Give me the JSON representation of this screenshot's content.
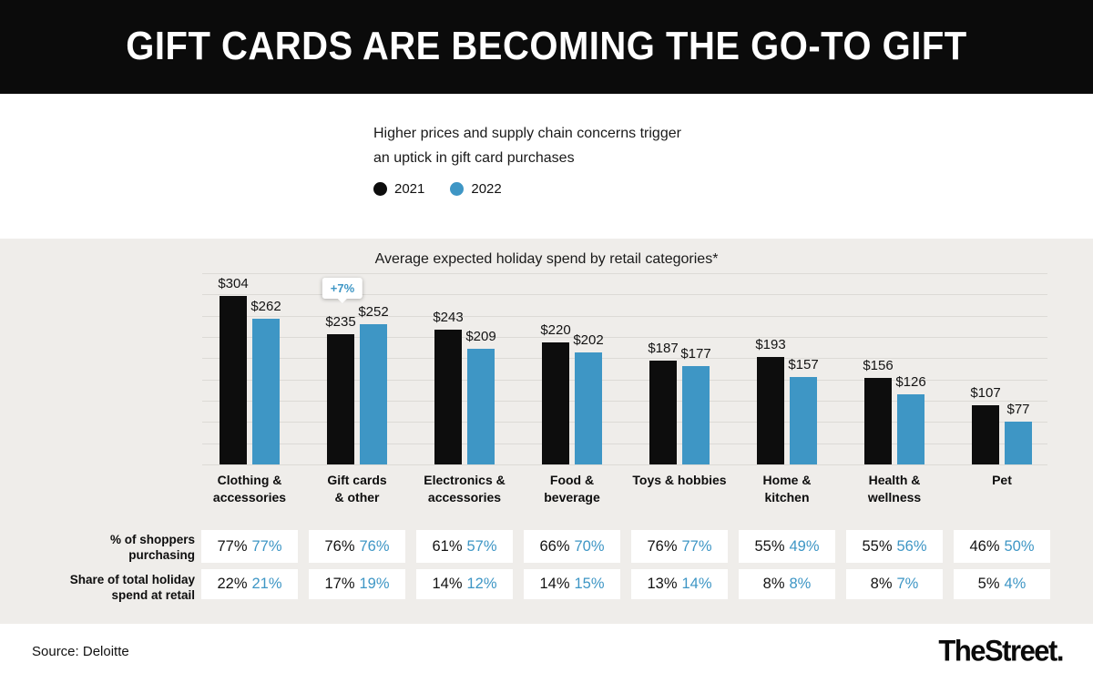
{
  "header": {
    "title": "GIFT CARDS ARE BECOMING THE GO-TO GIFT"
  },
  "intro": {
    "line1": "Higher prices and supply chain concerns trigger",
    "line2": "an uptick in gift card purchases"
  },
  "legend": [
    {
      "label": "2021",
      "color_key": "black"
    },
    {
      "label": "2022",
      "color_key": "blue"
    }
  ],
  "colors": {
    "black": "#0d0d0d",
    "blue": "#3e96c5",
    "panel_bg": "#efedea"
  },
  "chart_data": {
    "type": "bar",
    "title": "Average expected holiday spend by retail categories*",
    "value_prefix": "$",
    "categories": [
      "Clothing & accessories",
      "Gift cards & other",
      "Electronics & accessories",
      "Food & beverage",
      "Toys & hobbies",
      "Home & kitchen",
      "Health & wellness",
      "Pet"
    ],
    "category_lines": [
      [
        "Clothing &",
        "accessories"
      ],
      [
        "Gift cards",
        "& other"
      ],
      [
        "Electronics &",
        "accessories"
      ],
      [
        "Food &",
        "beverage"
      ],
      [
        "Toys & hobbies"
      ],
      [
        "Home &",
        "kitchen"
      ],
      [
        "Health &",
        "wellness"
      ],
      [
        "Pet"
      ]
    ],
    "series": [
      {
        "name": "2021",
        "color_key": "black",
        "values": [
          304,
          235,
          243,
          220,
          187,
          193,
          156,
          107
        ]
      },
      {
        "name": "2022",
        "color_key": "blue",
        "values": [
          262,
          252,
          209,
          202,
          177,
          157,
          126,
          77
        ]
      }
    ],
    "callout": {
      "text": "+7%",
      "category_index": 1,
      "series": "2022"
    },
    "ylim": [
      0,
      345
    ],
    "grid": "horizontal",
    "legend_position": "top-left"
  },
  "table": {
    "rows": [
      {
        "label_lines": [
          "% of shoppers",
          "purchasing"
        ],
        "pairs": [
          [
            "77%",
            "77%"
          ],
          [
            "76%",
            "76%"
          ],
          [
            "61%",
            "57%"
          ],
          [
            "66%",
            "70%"
          ],
          [
            "76%",
            "77%"
          ],
          [
            "55%",
            "49%"
          ],
          [
            "55%",
            "56%"
          ],
          [
            "46%",
            "50%"
          ]
        ]
      },
      {
        "label_lines": [
          "Share of total holiday",
          "spend at retail"
        ],
        "pairs": [
          [
            "22%",
            "21%"
          ],
          [
            "17%",
            "19%"
          ],
          [
            "14%",
            "12%"
          ],
          [
            "14%",
            "15%"
          ],
          [
            "13%",
            "14%"
          ],
          [
            "8%",
            "8%"
          ],
          [
            "8%",
            "7%"
          ],
          [
            "5%",
            "4%"
          ]
        ]
      }
    ]
  },
  "footer": {
    "source": "Source: Deloitte",
    "logo": "TheStreet."
  }
}
